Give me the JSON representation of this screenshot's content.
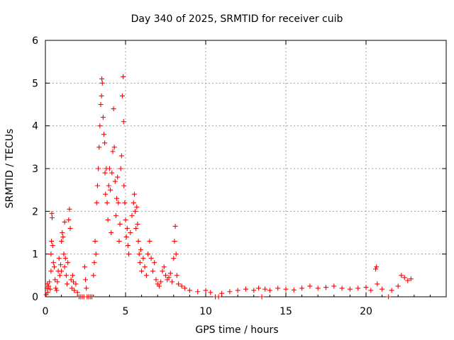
{
  "chart_data": {
    "type": "scatter",
    "title": "Day 340 of 2025, SRMTID for receiver cuib",
    "xlabel": "GPS time / hours",
    "ylabel": "SRMTID / TECUs",
    "xlim": [
      0,
      25
    ],
    "ylim": [
      0,
      6
    ],
    "x_ticks": [
      0,
      5,
      10,
      15,
      20
    ],
    "y_ticks": [
      0,
      1,
      2,
      3,
      4,
      5,
      6
    ],
    "grid": true,
    "marker": "+",
    "color": "#ff0000",
    "series": [
      {
        "name": "SRMTID",
        "points": [
          [
            0.05,
            0.05
          ],
          [
            0.1,
            0.2
          ],
          [
            0.12,
            0.3
          ],
          [
            0.15,
            0.1
          ],
          [
            0.2,
            0.25
          ],
          [
            0.25,
            0.35
          ],
          [
            0.3,
            0.18
          ],
          [
            0.35,
            0.6
          ],
          [
            0.35,
            1.0
          ],
          [
            0.38,
            1.3
          ],
          [
            0.4,
            1.95
          ],
          [
            0.42,
            1.85
          ],
          [
            0.45,
            1.2
          ],
          [
            0.5,
            0.8
          ],
          [
            0.55,
            0.7
          ],
          [
            0.6,
            0.4
          ],
          [
            0.65,
            0.2
          ],
          [
            0.7,
            0.15
          ],
          [
            0.75,
            0.35
          ],
          [
            0.8,
            0.6
          ],
          [
            0.85,
            0.9
          ],
          [
            0.9,
            0.5
          ],
          [
            0.95,
            0.75
          ],
          [
            1.0,
            1.3
          ],
          [
            1.0,
            0.6
          ],
          [
            1.05,
            1.5
          ],
          [
            1.1,
            1.4
          ],
          [
            1.15,
            1.0
          ],
          [
            1.2,
            0.7
          ],
          [
            1.2,
            1.75
          ],
          [
            1.25,
            0.9
          ],
          [
            1.3,
            0.5
          ],
          [
            1.35,
            0.3
          ],
          [
            1.4,
            0.8
          ],
          [
            1.45,
            1.8
          ],
          [
            1.5,
            2.05
          ],
          [
            1.55,
            1.6
          ],
          [
            1.6,
            0.4
          ],
          [
            1.65,
            0.2
          ],
          [
            1.7,
            0.5
          ],
          [
            1.75,
            0.35
          ],
          [
            1.8,
            0.15
          ],
          [
            1.9,
            0.3
          ],
          [
            2.0,
            0.1
          ],
          [
            2.1,
            0.0
          ],
          [
            2.2,
            0.0
          ],
          [
            2.3,
            0.0
          ],
          [
            2.4,
            0.0
          ],
          [
            2.45,
            0.7
          ],
          [
            2.5,
            0.4
          ],
          [
            2.55,
            0.2
          ],
          [
            2.6,
            0.0
          ],
          [
            2.7,
            0.0
          ],
          [
            2.8,
            0.0
          ],
          [
            2.9,
            0.0
          ],
          [
            3.0,
            0.5
          ],
          [
            3.05,
            0.8
          ],
          [
            3.1,
            1.3
          ],
          [
            3.15,
            1.0
          ],
          [
            3.2,
            2.2
          ],
          [
            3.25,
            2.6
          ],
          [
            3.3,
            3.0
          ],
          [
            3.35,
            3.5
          ],
          [
            3.4,
            4.0
          ],
          [
            3.45,
            4.5
          ],
          [
            3.5,
            4.7
          ],
          [
            3.52,
            5.1
          ],
          [
            3.55,
            5.0
          ],
          [
            3.6,
            4.2
          ],
          [
            3.65,
            3.8
          ],
          [
            3.7,
            3.6
          ],
          [
            3.72,
            2.9
          ],
          [
            3.75,
            2.4
          ],
          [
            3.8,
            3.0
          ],
          [
            3.85,
            2.2
          ],
          [
            3.9,
            1.8
          ],
          [
            3.95,
            2.6
          ],
          [
            4.0,
            3.0
          ],
          [
            4.05,
            2.5
          ],
          [
            4.1,
            1.5
          ],
          [
            4.15,
            2.9
          ],
          [
            4.2,
            3.4
          ],
          [
            4.25,
            4.4
          ],
          [
            4.3,
            3.5
          ],
          [
            4.35,
            2.7
          ],
          [
            4.4,
            1.9
          ],
          [
            4.45,
            2.3
          ],
          [
            4.5,
            2.8
          ],
          [
            4.55,
            2.2
          ],
          [
            4.6,
            1.3
          ],
          [
            4.65,
            1.7
          ],
          [
            4.7,
            3.0
          ],
          [
            4.75,
            3.3
          ],
          [
            4.8,
            4.7
          ],
          [
            4.85,
            5.15
          ],
          [
            4.88,
            4.1
          ],
          [
            4.9,
            2.6
          ],
          [
            4.95,
            2.2
          ],
          [
            5.0,
            1.8
          ],
          [
            5.05,
            1.4
          ],
          [
            5.1,
            1.6
          ],
          [
            5.15,
            1.2
          ],
          [
            5.2,
            1.0
          ],
          [
            5.3,
            1.5
          ],
          [
            5.4,
            1.9
          ],
          [
            5.5,
            2.2
          ],
          [
            5.55,
            2.4
          ],
          [
            5.6,
            2.0
          ],
          [
            5.65,
            1.6
          ],
          [
            5.7,
            2.1
          ],
          [
            5.75,
            1.7
          ],
          [
            5.8,
            1.3
          ],
          [
            5.85,
            1.0
          ],
          [
            5.9,
            0.8
          ],
          [
            5.95,
            1.1
          ],
          [
            6.0,
            0.6
          ],
          [
            6.1,
            0.9
          ],
          [
            6.2,
            0.7
          ],
          [
            6.3,
            0.5
          ],
          [
            6.4,
            1.0
          ],
          [
            6.5,
            1.3
          ],
          [
            6.6,
            0.9
          ],
          [
            6.7,
            0.6
          ],
          [
            6.8,
            0.8
          ],
          [
            6.9,
            0.4
          ],
          [
            7.0,
            0.3
          ],
          [
            7.1,
            0.25
          ],
          [
            7.2,
            0.35
          ],
          [
            7.3,
            0.6
          ],
          [
            7.4,
            0.7
          ],
          [
            7.5,
            0.5
          ],
          [
            7.6,
            0.4
          ],
          [
            7.7,
            0.45
          ],
          [
            7.8,
            0.55
          ],
          [
            7.9,
            0.35
          ],
          [
            8.0,
            0.9
          ],
          [
            8.05,
            1.3
          ],
          [
            8.1,
            1.65
          ],
          [
            8.15,
            1.0
          ],
          [
            8.2,
            0.5
          ],
          [
            8.3,
            0.3
          ],
          [
            8.5,
            0.25
          ],
          [
            8.7,
            0.2
          ],
          [
            9.0,
            0.15
          ],
          [
            9.5,
            0.12
          ],
          [
            10.0,
            0.15
          ],
          [
            10.3,
            0.1
          ],
          [
            10.6,
            0.0
          ],
          [
            10.8,
            0.0
          ],
          [
            11.0,
            0.08
          ],
          [
            11.5,
            0.12
          ],
          [
            12.0,
            0.15
          ],
          [
            12.5,
            0.18
          ],
          [
            13.0,
            0.15
          ],
          [
            13.3,
            0.2
          ],
          [
            13.5,
            0.0
          ],
          [
            13.7,
            0.18
          ],
          [
            14.0,
            0.15
          ],
          [
            14.5,
            0.2
          ],
          [
            15.0,
            0.18
          ],
          [
            15.5,
            0.16
          ],
          [
            16.0,
            0.2
          ],
          [
            16.5,
            0.25
          ],
          [
            17.0,
            0.2
          ],
          [
            17.5,
            0.22
          ],
          [
            18.0,
            0.25
          ],
          [
            18.5,
            0.2
          ],
          [
            19.0,
            0.18
          ],
          [
            19.5,
            0.2
          ],
          [
            20.0,
            0.22
          ],
          [
            20.3,
            0.15
          ],
          [
            20.6,
            0.65
          ],
          [
            20.65,
            0.7
          ],
          [
            20.7,
            0.3
          ],
          [
            21.0,
            0.18
          ],
          [
            21.4,
            0.0
          ],
          [
            21.6,
            0.15
          ],
          [
            22.0,
            0.25
          ],
          [
            22.2,
            0.5
          ],
          [
            22.4,
            0.45
          ],
          [
            22.6,
            0.38
          ],
          [
            22.8,
            0.42
          ]
        ]
      }
    ]
  }
}
